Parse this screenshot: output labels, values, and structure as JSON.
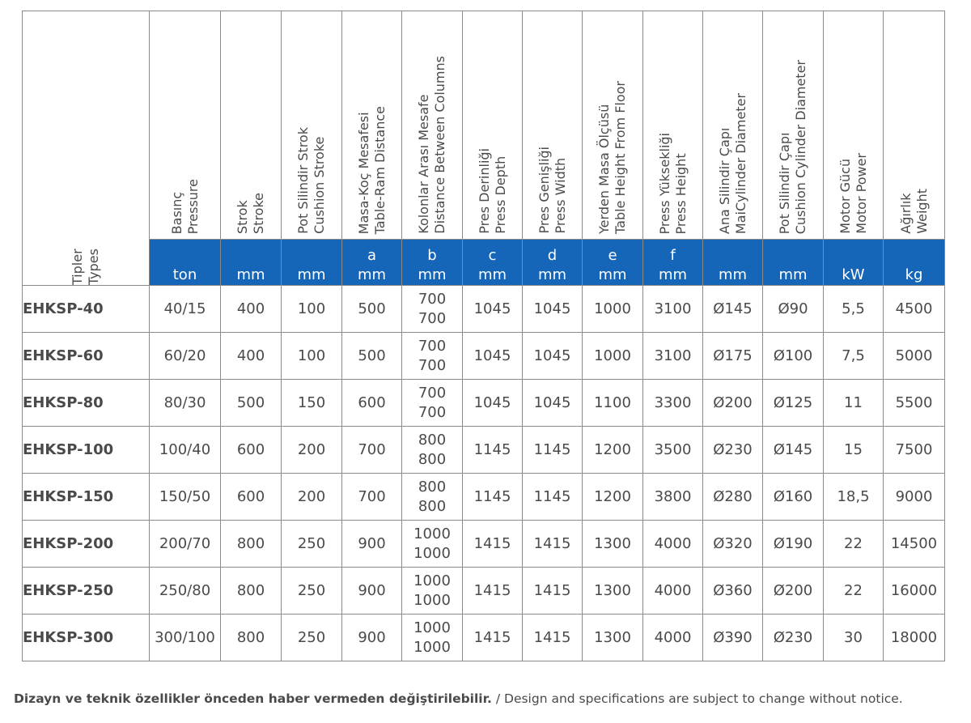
{
  "columns": [
    {
      "tr": "Tipler",
      "en": "Types"
    },
    {
      "tr": "Basınç",
      "en": "Pressure",
      "letter": "",
      "unit": "ton"
    },
    {
      "tr": "Strok",
      "en": "Stroke",
      "letter": "",
      "unit": "mm"
    },
    {
      "tr": "Pot Silindir Strok",
      "en": "Cushion Stroke",
      "letter": "",
      "unit": "mm"
    },
    {
      "tr": "Masa-Koç Mesafesi",
      "en": "Table-Ram Distance",
      "letter": "a",
      "unit": "mm"
    },
    {
      "tr": "Kolonlar Arası Mesafe",
      "en": "Distance Between Columns",
      "letter": "b",
      "unit": "mm"
    },
    {
      "tr": "Pres Derinliği",
      "en": "Press Depth",
      "letter": "c",
      "unit": "mm"
    },
    {
      "tr": "Pres Genişliği",
      "en": "Press Width",
      "letter": "d",
      "unit": "mm"
    },
    {
      "tr": "Yerden Masa Ölçüsü",
      "en": "Table Height From Floor",
      "letter": "e",
      "unit": "mm"
    },
    {
      "tr": "Press Yüksekliği",
      "en": "Press Height",
      "letter": "f",
      "unit": "mm"
    },
    {
      "tr": "Ana Silindir Çapı",
      "en": "MaiCylinder Diameter",
      "letter": "",
      "unit": "mm"
    },
    {
      "tr": "Pot Silindir Çapı",
      "en": "Cushion Cylinder Diameter",
      "letter": "",
      "unit": "mm"
    },
    {
      "tr": "Motor Gücü",
      "en": "Motor Power",
      "letter": "",
      "unit": "kW"
    },
    {
      "tr": "Ağırlık",
      "en": "Weight",
      "letter": "",
      "unit": "kg"
    }
  ],
  "rows": [
    {
      "model": "EHKSP-40",
      "pressure": "40/15",
      "stroke": "400",
      "cushion_stroke": "100",
      "a": "500",
      "b1": "700",
      "b2": "700",
      "c": "1045",
      "d": "1045",
      "e": "1000",
      "f": "3100",
      "main_dia": "Ø145",
      "cushion_dia": "Ø90",
      "power": "5,5",
      "weight": "4500"
    },
    {
      "model": "EHKSP-60",
      "pressure": "60/20",
      "stroke": "400",
      "cushion_stroke": "100",
      "a": "500",
      "b1": "700",
      "b2": "700",
      "c": "1045",
      "d": "1045",
      "e": "1000",
      "f": "3100",
      "main_dia": "Ø175",
      "cushion_dia": "Ø100",
      "power": "7,5",
      "weight": "5000"
    },
    {
      "model": "EHKSP-80",
      "pressure": "80/30",
      "stroke": "500",
      "cushion_stroke": "150",
      "a": "600",
      "b1": "700",
      "b2": "700",
      "c": "1045",
      "d": "1045",
      "e": "1100",
      "f": "3300",
      "main_dia": "Ø200",
      "cushion_dia": "Ø125",
      "power": "11",
      "weight": "5500"
    },
    {
      "model": "EHKSP-100",
      "pressure": "100/40",
      "stroke": "600",
      "cushion_stroke": "200",
      "a": "700",
      "b1": "800",
      "b2": "800",
      "c": "1145",
      "d": "1145",
      "e": "1200",
      "f": "3500",
      "main_dia": "Ø230",
      "cushion_dia": "Ø145",
      "power": "15",
      "weight": "7500"
    },
    {
      "model": "EHKSP-150",
      "pressure": "150/50",
      "stroke": "600",
      "cushion_stroke": "200",
      "a": "700",
      "b1": "800",
      "b2": "800",
      "c": "1145",
      "d": "1145",
      "e": "1200",
      "f": "3800",
      "main_dia": "Ø280",
      "cushion_dia": "Ø160",
      "power": "18,5",
      "weight": "9000"
    },
    {
      "model": "EHKSP-200",
      "pressure": "200/70",
      "stroke": "800",
      "cushion_stroke": "250",
      "a": "900",
      "b1": "1000",
      "b2": "1000",
      "c": "1415",
      "d": "1415",
      "e": "1300",
      "f": "4000",
      "main_dia": "Ø320",
      "cushion_dia": "Ø190",
      "power": "22",
      "weight": "14500"
    },
    {
      "model": "EHKSP-250",
      "pressure": "250/80",
      "stroke": "800",
      "cushion_stroke": "250",
      "a": "900",
      "b1": "1000",
      "b2": "1000",
      "c": "1415",
      "d": "1415",
      "e": "1300",
      "f": "4000",
      "main_dia": "Ø360",
      "cushion_dia": "Ø200",
      "power": "22",
      "weight": "16000"
    },
    {
      "model": "EHKSP-300",
      "pressure": "300/100",
      "stroke": "800",
      "cushion_stroke": "250",
      "a": "900",
      "b1": "1000",
      "b2": "1000",
      "c": "1415",
      "d": "1415",
      "e": "1300",
      "f": "4000",
      "main_dia": "Ø390",
      "cushion_dia": "Ø230",
      "power": "30",
      "weight": "18000"
    }
  ],
  "footer": {
    "tr": "Dizayn ve teknik özellikler önceden haber vermeden değiştirilebilir.",
    "en": " / Design and specifications are subject to change without notice."
  },
  "colors": {
    "unit_band": "#1565b8",
    "border": "#8a8a8a",
    "text": "#4a4a4a"
  }
}
